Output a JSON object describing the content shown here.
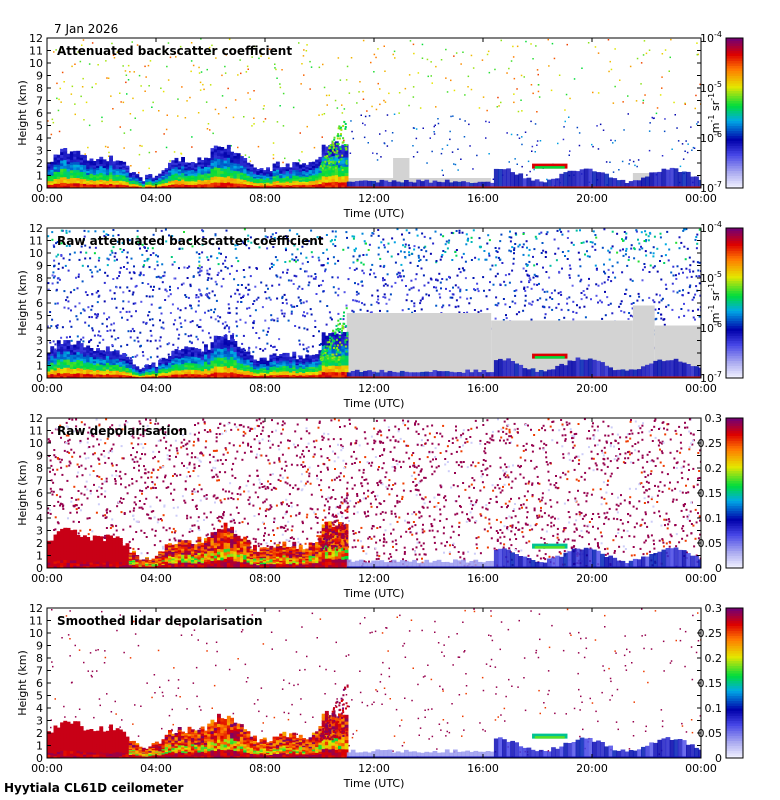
{
  "date_label": "7 Jan 2026",
  "footer": "Hyytiala CL61D ceilometer",
  "colors": {
    "frame": "#000000",
    "background": "#ffffff",
    "nodata": "#d3d3d3"
  },
  "chart_data": [
    {
      "type": "heatmap",
      "title": "Attenuated backscatter coefficient",
      "xlabel": "Time (UTC)",
      "ylabel": "Height (km)",
      "x_ticks": [
        "00:00",
        "04:00",
        "08:00",
        "12:00",
        "16:00",
        "20:00",
        "00:00"
      ],
      "y_ticks": [
        "0",
        "1",
        "2",
        "3",
        "4",
        "5",
        "6",
        "7",
        "8",
        "9",
        "10",
        "11",
        "12"
      ],
      "xlim": [
        0,
        24
      ],
      "ylim": [
        0,
        12
      ],
      "colorbar": {
        "scale": "log",
        "ticks": [
          "10",
          "10",
          "10",
          "10"
        ],
        "exponents": [
          "-7",
          "-6",
          "-5",
          "-4"
        ],
        "unit_parts": [
          "m",
          "-1",
          " sr",
          "-1"
        ]
      },
      "scene": "backscatter_smooth"
    },
    {
      "type": "heatmap",
      "title": "Raw attenuated backscatter coefficient",
      "xlabel": "Time (UTC)",
      "ylabel": "Height (km)",
      "x_ticks": [
        "00:00",
        "04:00",
        "08:00",
        "12:00",
        "16:00",
        "20:00",
        "00:00"
      ],
      "y_ticks": [
        "0",
        "1",
        "2",
        "3",
        "4",
        "5",
        "6",
        "7",
        "8",
        "9",
        "10",
        "11",
        "12"
      ],
      "xlim": [
        0,
        24
      ],
      "ylim": [
        0,
        12
      ],
      "colorbar": {
        "scale": "log",
        "ticks": [
          "10",
          "10",
          "10",
          "10"
        ],
        "exponents": [
          "-7",
          "-6",
          "-5",
          "-4"
        ],
        "unit_parts": [
          "m",
          "-1",
          " sr",
          "-1"
        ]
      },
      "scene": "backscatter_raw"
    },
    {
      "type": "heatmap",
      "title": "Raw depolarisation",
      "xlabel": "Time (UTC)",
      "ylabel": "Height (km)",
      "x_ticks": [
        "00:00",
        "04:00",
        "08:00",
        "12:00",
        "16:00",
        "20:00",
        "00:00"
      ],
      "y_ticks": [
        "0",
        "1",
        "2",
        "3",
        "4",
        "5",
        "6",
        "7",
        "8",
        "9",
        "10",
        "11",
        "12"
      ],
      "xlim": [
        0,
        24
      ],
      "ylim": [
        0,
        12
      ],
      "colorbar": {
        "scale": "linear",
        "ticks": [
          "0",
          "0.05",
          "0.1",
          "0.15",
          "0.2",
          "0.25",
          "0.3"
        ],
        "range": [
          0,
          0.3
        ]
      },
      "scene": "depol_raw"
    },
    {
      "type": "heatmap",
      "title": "Smoothed lidar depolarisation",
      "xlabel": "Time (UTC)",
      "ylabel": "Height (km)",
      "x_ticks": [
        "00:00",
        "04:00",
        "08:00",
        "12:00",
        "16:00",
        "20:00",
        "00:00"
      ],
      "y_ticks": [
        "0",
        "1",
        "2",
        "3",
        "4",
        "5",
        "6",
        "7",
        "8",
        "9",
        "10",
        "11",
        "12"
      ],
      "xlim": [
        0,
        24
      ],
      "ylim": [
        0,
        12
      ],
      "colorbar": {
        "scale": "linear",
        "ticks": [
          "0",
          "0.05",
          "0.1",
          "0.15",
          "0.2",
          "0.25",
          "0.3"
        ],
        "range": [
          0,
          0.3
        ]
      },
      "scene": "depol_smooth"
    }
  ]
}
